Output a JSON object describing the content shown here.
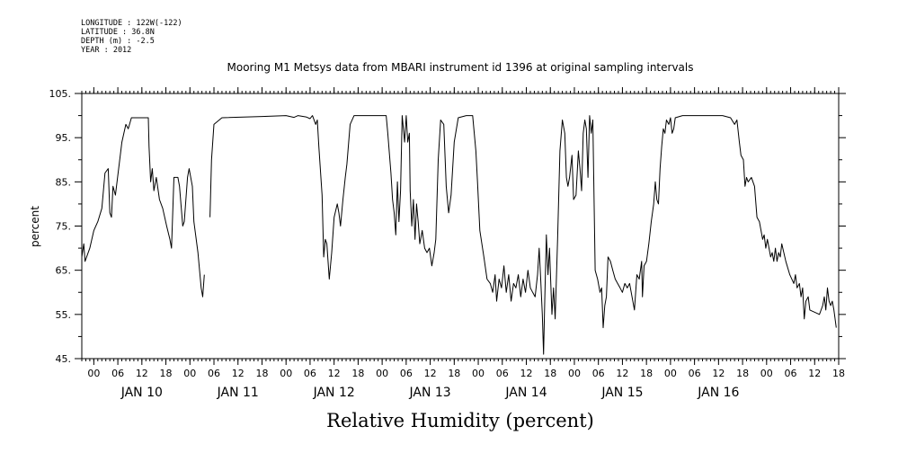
{
  "meta": {
    "longitude": "LONGITUDE : 122W(-122)",
    "latitude": "LATITUDE : 36.8N",
    "depth": "DEPTH (m) : -2.5",
    "year": "YEAR : 2012"
  },
  "chart_data": {
    "type": "line",
    "title": "Mooring M1 Metsys data from MBARI instrument id 1396 at original sampling intervals",
    "xlabel": "Relative Humidity (percent)",
    "ylabel": "percent",
    "x_unit": "hours since JAN 09 21:00",
    "xlim": [
      0,
      189
    ],
    "ylim": [
      45,
      105
    ],
    "y_ticks": [
      45,
      55,
      65,
      75,
      85,
      95,
      105
    ],
    "y_tick_labels": [
      "45.",
      "55.",
      "65.",
      "75.",
      "85.",
      "95.",
      "105."
    ],
    "x_hour_ticks": [
      3,
      9,
      15,
      21,
      27,
      33,
      39,
      45,
      51,
      57,
      63,
      69,
      75,
      81,
      87,
      93,
      99,
      105,
      111,
      117,
      123,
      129,
      135,
      141,
      147,
      153,
      159,
      165,
      171,
      177,
      183,
      189
    ],
    "x_hour_labels": [
      "00",
      "06",
      "12",
      "18",
      "00",
      "06",
      "12",
      "18",
      "00",
      "06",
      "12",
      "18",
      "00",
      "06",
      "12",
      "18",
      "00",
      "06",
      "12",
      "18",
      "00",
      "06",
      "12",
      "18",
      "00",
      "06",
      "12",
      "18",
      "00",
      "06",
      "12",
      "18"
    ],
    "x_day_ticks": [
      15,
      39,
      63,
      87,
      111,
      135,
      159
    ],
    "x_day_labels": [
      "JAN 10",
      "JAN 11",
      "JAN 12",
      "JAN 13",
      "JAN 14",
      "JAN 15",
      "JAN 16"
    ],
    "grid": false,
    "series": [
      {
        "segments": [
          [
            [
              0,
              68
            ],
            [
              0.5,
              71
            ],
            [
              0.8,
              67
            ],
            [
              2,
              70
            ],
            [
              3,
              74
            ],
            [
              4,
              76
            ],
            [
              5,
              79
            ],
            [
              5.8,
              87
            ],
            [
              6.6,
              88
            ],
            [
              7,
              78
            ],
            [
              7.4,
              77
            ],
            [
              7.8,
              84
            ],
            [
              8.4,
              82
            ],
            [
              9.2,
              88
            ],
            [
              10,
              94
            ],
            [
              11,
              98
            ],
            [
              11.6,
              97
            ],
            [
              12.4,
              99.5
            ],
            [
              15,
              99.5
            ],
            [
              16.6,
              99.5
            ],
            [
              16.8,
              93
            ],
            [
              17.2,
              85
            ],
            [
              17.6,
              88
            ],
            [
              18,
              83
            ],
            [
              18.6,
              86
            ],
            [
              19.4,
              81
            ],
            [
              20.2,
              79
            ],
            [
              21.2,
              75
            ],
            [
              22,
              72
            ],
            [
              22.4,
              70
            ],
            [
              23,
              86
            ],
            [
              24,
              86
            ],
            [
              24.4,
              84
            ],
            [
              25.2,
              75
            ],
            [
              25.6,
              76
            ],
            [
              26.4,
              86
            ],
            [
              26.8,
              88
            ],
            [
              27.6,
              84
            ],
            [
              28,
              76
            ],
            [
              29,
              69
            ],
            [
              29.8,
              61
            ],
            [
              30.2,
              59
            ],
            [
              30.6,
              64
            ]
          ],
          [
            [
              32,
              77
            ],
            [
              32.4,
              90
            ],
            [
              33,
              98
            ],
            [
              35,
              99.5
            ],
            [
              45,
              99.8
            ],
            [
              51,
              100
            ],
            [
              53,
              99.6
            ],
            [
              54,
              100
            ],
            [
              56,
              99.7
            ],
            [
              57,
              99.3
            ],
            [
              57.6,
              100
            ],
            [
              58.4,
              98
            ],
            [
              58.8,
              99
            ],
            [
              59.2,
              93
            ],
            [
              60,
              82
            ],
            [
              60.4,
              68
            ],
            [
              60.8,
              72
            ],
            [
              61.2,
              71
            ],
            [
              61.8,
              63
            ],
            [
              62.4,
              69
            ],
            [
              63,
              77
            ],
            [
              63.8,
              80
            ],
            [
              64.2,
              78
            ],
            [
              64.6,
              75
            ],
            [
              65.2,
              81
            ],
            [
              65.8,
              86
            ],
            [
              66.2,
              89
            ],
            [
              67,
              98
            ],
            [
              68,
              100
            ],
            [
              75,
              100
            ],
            [
              76,
              100
            ],
            [
              76.4,
              96
            ],
            [
              77.2,
              87
            ],
            [
              77.6,
              81
            ],
            [
              78,
              78
            ],
            [
              78.4,
              73
            ],
            [
              78.8,
              85
            ],
            [
              79.2,
              76
            ],
            [
              79.6,
              83
            ],
            [
              80,
              100
            ],
            [
              80.6,
              94
            ],
            [
              81,
              100
            ],
            [
              81.4,
              94
            ],
            [
              81.8,
              96
            ],
            [
              82,
              83
            ],
            [
              82.4,
              75
            ],
            [
              82.8,
              81
            ],
            [
              83.2,
              72
            ],
            [
              83.6,
              80
            ],
            [
              84,
              76
            ],
            [
              84.4,
              71
            ],
            [
              85,
              74
            ],
            [
              85.6,
              70
            ],
            [
              86.2,
              69
            ],
            [
              86.8,
              70
            ],
            [
              87.4,
              66
            ],
            [
              88,
              69
            ],
            [
              88.4,
              72
            ],
            [
              89,
              90
            ],
            [
              89.6,
              99
            ],
            [
              90.4,
              98
            ],
            [
              91,
              84
            ],
            [
              91.6,
              78
            ],
            [
              92.2,
              82
            ],
            [
              93,
              94
            ],
            [
              94,
              99.5
            ],
            [
              96,
              100
            ],
            [
              97.6,
              100
            ],
            [
              98.4,
              92
            ],
            [
              98.8,
              85
            ],
            [
              99.4,
              74
            ],
            [
              100.4,
              68
            ],
            [
              101.2,
              63
            ],
            [
              102,
              62
            ],
            [
              102.6,
              60
            ],
            [
              103.2,
              64
            ],
            [
              103.6,
              58
            ],
            [
              104.2,
              63
            ],
            [
              104.8,
              61
            ],
            [
              105.4,
              66
            ],
            [
              106,
              60
            ],
            [
              106.6,
              64
            ],
            [
              107.2,
              58
            ],
            [
              107.8,
              62
            ],
            [
              108.4,
              61
            ],
            [
              109,
              64
            ],
            [
              109.6,
              59
            ],
            [
              110.2,
              63
            ],
            [
              110.8,
              60
            ],
            [
              111.4,
              65
            ],
            [
              112,
              61
            ],
            [
              112.6,
              60
            ],
            [
              113.2,
              59
            ],
            [
              113.8,
              64
            ],
            [
              114.2,
              70
            ],
            [
              114.6,
              63
            ],
            [
              115,
              55
            ],
            [
              115.3,
              46
            ],
            [
              115.6,
              58
            ],
            [
              116,
              73
            ],
            [
              116.4,
              64
            ],
            [
              116.8,
              70
            ],
            [
              117.4,
              55
            ],
            [
              117.8,
              61
            ],
            [
              118.2,
              54
            ],
            [
              118.8,
              72
            ],
            [
              119.4,
              92
            ],
            [
              120,
              99
            ],
            [
              120.6,
              96
            ],
            [
              121,
              86
            ],
            [
              121.4,
              84
            ],
            [
              121.8,
              86
            ],
            [
              122.4,
              91
            ],
            [
              122.8,
              81
            ],
            [
              123.4,
              82
            ],
            [
              124,
              92
            ],
            [
              124.4,
              88
            ],
            [
              124.8,
              83
            ],
            [
              125.2,
              96
            ],
            [
              125.6,
              99
            ],
            [
              126,
              97
            ],
            [
              126.4,
              86
            ],
            [
              126.8,
              100
            ],
            [
              127.2,
              96
            ],
            [
              127.6,
              99
            ],
            [
              128.2,
              65
            ],
            [
              128.8,
              63
            ],
            [
              129.4,
              60
            ],
            [
              129.8,
              61
            ],
            [
              130.2,
              52
            ],
            [
              130.6,
              57
            ],
            [
              131,
              59
            ],
            [
              131.4,
              68
            ],
            [
              132,
              67
            ],
            [
              132.6,
              65
            ],
            [
              133.2,
              63
            ],
            [
              133.8,
              62
            ],
            [
              134.4,
              61
            ],
            [
              135,
              60
            ],
            [
              135.6,
              62
            ],
            [
              136.2,
              61
            ],
            [
              136.8,
              62
            ],
            [
              137.4,
              59
            ],
            [
              138,
              56
            ],
            [
              138.6,
              64
            ],
            [
              139.2,
              63
            ],
            [
              139.8,
              67
            ],
            [
              140,
              59
            ],
            [
              140.4,
              66
            ],
            [
              141,
              67
            ],
            [
              141.6,
              71
            ],
            [
              142.2,
              76
            ],
            [
              142.8,
              80
            ],
            [
              143.2,
              85
            ],
            [
              143.6,
              81
            ],
            [
              144,
              80
            ],
            [
              144.4,
              88
            ],
            [
              144.8,
              93
            ],
            [
              145.2,
              97
            ],
            [
              145.6,
              96
            ],
            [
              146,
              99
            ],
            [
              146.6,
              98
            ],
            [
              147,
              99.5
            ],
            [
              147.4,
              96
            ],
            [
              147.8,
              97
            ],
            [
              148.2,
              99.5
            ],
            [
              150,
              100
            ],
            [
              160,
              100
            ],
            [
              162,
              99.5
            ],
            [
              163,
              98
            ],
            [
              163.6,
              99
            ],
            [
              164.2,
              94
            ],
            [
              164.6,
              91
            ],
            [
              165.2,
              90
            ],
            [
              165.6,
              84
            ],
            [
              166,
              86
            ],
            [
              166.4,
              85
            ],
            [
              167.2,
              86
            ],
            [
              168,
              84
            ],
            [
              168.6,
              77
            ],
            [
              169.2,
              76
            ],
            [
              169.6,
              74
            ],
            [
              170,
              72
            ],
            [
              170.4,
              73
            ],
            [
              170.8,
              70
            ],
            [
              171.2,
              72
            ],
            [
              171.6,
              70
            ],
            [
              172,
              68
            ],
            [
              172.4,
              69
            ],
            [
              172.8,
              67
            ],
            [
              173.2,
              70
            ],
            [
              173.6,
              67
            ],
            [
              174,
              69
            ],
            [
              174.4,
              68
            ],
            [
              174.8,
              71
            ],
            [
              175.8,
              67
            ],
            [
              176.8,
              64
            ],
            [
              177.8,
              62
            ],
            [
              178.2,
              64
            ],
            [
              178.6,
              61
            ],
            [
              179.2,
              62
            ],
            [
              179.6,
              59
            ],
            [
              180,
              61
            ],
            [
              180.4,
              54
            ],
            [
              180.8,
              58
            ],
            [
              181.4,
              59
            ],
            [
              181.8,
              56
            ],
            [
              184.2,
              55
            ],
            [
              185,
              57
            ],
            [
              185.4,
              59
            ],
            [
              185.8,
              56
            ],
            [
              186.2,
              61
            ],
            [
              186.6,
              58
            ],
            [
              187,
              57
            ],
            [
              187.4,
              58
            ],
            [
              187.8,
              56
            ],
            [
              188.4,
              52
            ]
          ]
        ]
      }
    ]
  }
}
